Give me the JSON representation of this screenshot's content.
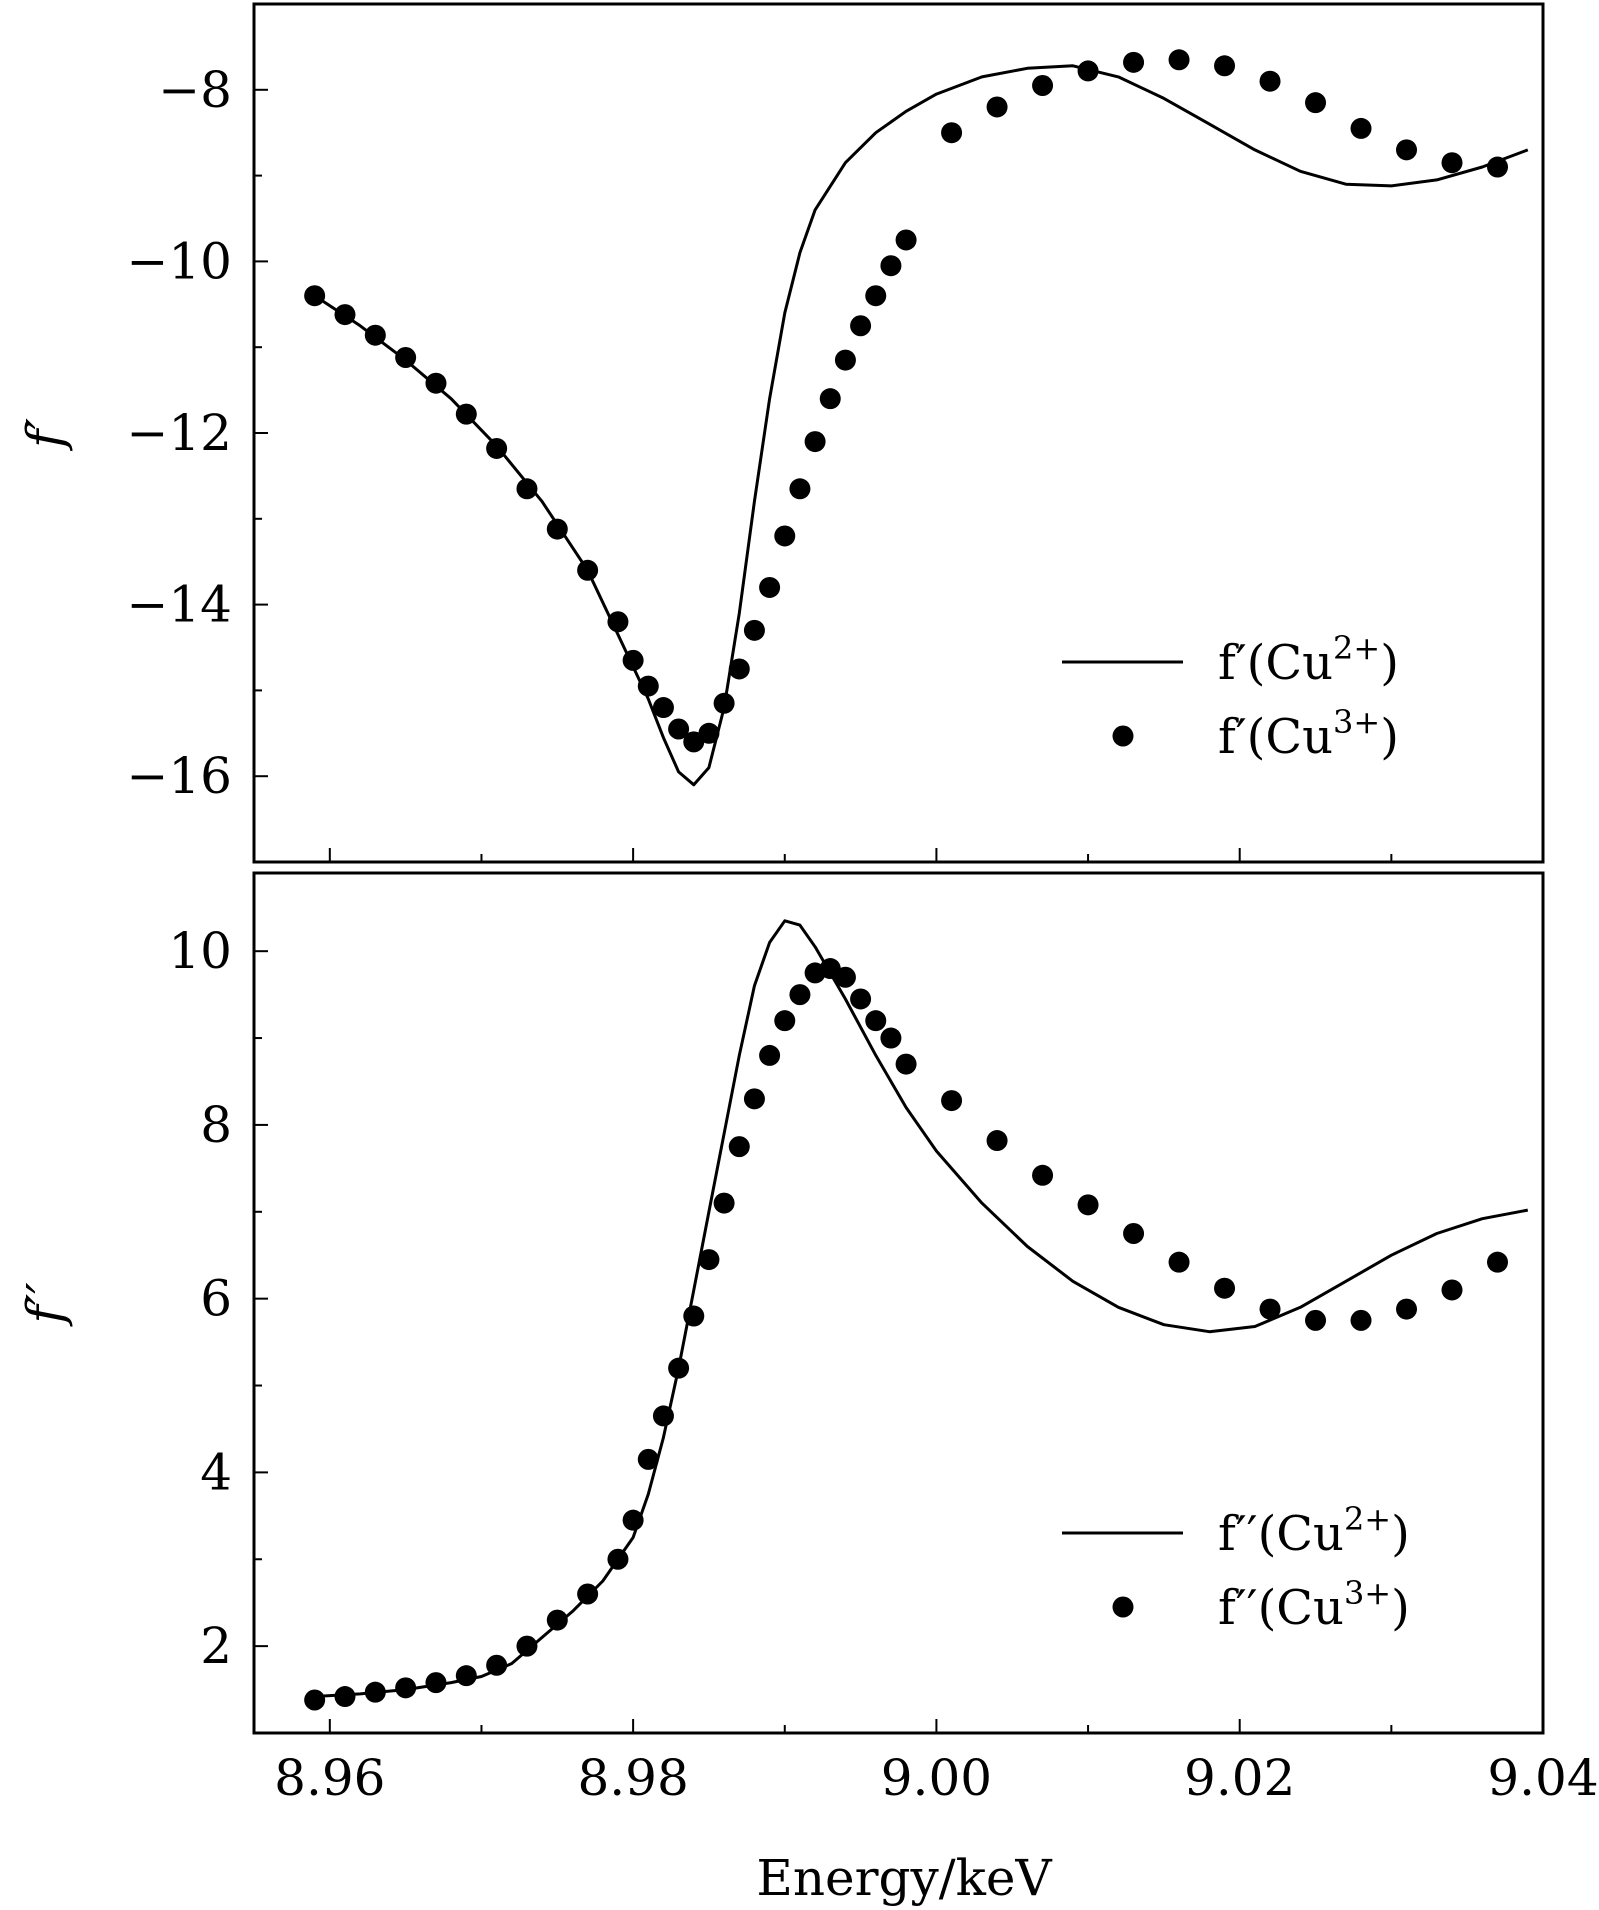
{
  "chart_data": [
    {
      "type": "line",
      "title": "",
      "xlabel": "",
      "ylabel": "f′",
      "xlim": [
        8.955,
        9.04
      ],
      "ylim": [
        -17.0,
        -7.0
      ],
      "yticks": [
        -16,
        -14,
        -12,
        -10,
        -8
      ],
      "ytick_labels": [
        "−16",
        "−14",
        "−12",
        "−10",
        "−8"
      ],
      "legend_position": "lower-right",
      "series": [
        {
          "name": "f′(Cu2+)",
          "label_main": "f′(Cu",
          "label_sup": "2+",
          "label_end": ")",
          "style": "line",
          "x": [
            8.959,
            8.962,
            8.965,
            8.968,
            8.971,
            8.974,
            8.977,
            8.979,
            8.981,
            8.982,
            8.983,
            8.984,
            8.985,
            8.986,
            8.987,
            8.988,
            8.989,
            8.99,
            8.991,
            8.992,
            8.994,
            8.996,
            8.998,
            9.0,
            9.003,
            9.006,
            9.009,
            9.012,
            9.015,
            9.018,
            9.021,
            9.024,
            9.027,
            9.03,
            9.033,
            9.036,
            9.039
          ],
          "y": [
            -10.4,
            -10.75,
            -11.15,
            -11.6,
            -12.15,
            -12.8,
            -13.6,
            -14.35,
            -15.1,
            -15.55,
            -15.95,
            -16.1,
            -15.9,
            -15.2,
            -14.1,
            -12.8,
            -11.6,
            -10.6,
            -9.9,
            -9.4,
            -8.85,
            -8.5,
            -8.25,
            -8.05,
            -7.85,
            -7.75,
            -7.72,
            -7.85,
            -8.1,
            -8.4,
            -8.7,
            -8.95,
            -9.1,
            -9.12,
            -9.05,
            -8.9,
            -8.7
          ]
        },
        {
          "name": "f′(Cu3+)",
          "label_main": "f′(Cu",
          "label_sup": "3+",
          "label_end": ")",
          "style": "markers",
          "x": [
            8.959,
            8.961,
            8.963,
            8.965,
            8.967,
            8.969,
            8.971,
            8.973,
            8.975,
            8.977,
            8.979,
            8.98,
            8.981,
            8.982,
            8.983,
            8.984,
            8.985,
            8.986,
            8.987,
            8.988,
            8.989,
            8.99,
            8.991,
            8.992,
            8.993,
            8.994,
            8.995,
            8.996,
            8.997,
            8.998,
            9.001,
            9.004,
            9.007,
            9.01,
            9.013,
            9.016,
            9.019,
            9.022,
            9.025,
            9.028,
            9.031,
            9.034,
            9.037
          ],
          "y": [
            -10.4,
            -10.62,
            -10.86,
            -11.12,
            -11.42,
            -11.78,
            -12.18,
            -12.65,
            -13.12,
            -13.6,
            -14.2,
            -14.65,
            -14.95,
            -15.2,
            -15.45,
            -15.6,
            -15.5,
            -15.15,
            -14.75,
            -14.3,
            -13.8,
            -13.2,
            -12.65,
            -12.1,
            -11.6,
            -11.15,
            -10.75,
            -10.4,
            -10.05,
            -9.75,
            -8.5,
            -8.2,
            -7.95,
            -7.78,
            -7.68,
            -7.65,
            -7.72,
            -7.9,
            -8.15,
            -8.45,
            -8.7,
            -8.85,
            -8.9
          ]
        }
      ]
    },
    {
      "type": "line",
      "title": "",
      "xlabel": "Energy/keV",
      "ylabel": "f′′",
      "xlim": [
        8.955,
        9.04
      ],
      "ylim": [
        1.0,
        10.9
      ],
      "xticks": [
        8.96,
        8.98,
        9.0,
        9.02,
        9.04
      ],
      "xtick_labels": [
        "8.96",
        "8.98",
        "9.00",
        "9.02",
        "9.04"
      ],
      "yticks": [
        2,
        4,
        6,
        8,
        10
      ],
      "ytick_labels": [
        "2",
        "4",
        "6",
        "8",
        "10"
      ],
      "legend_position": "lower-right",
      "series": [
        {
          "name": "f′′(Cu2+)",
          "label_main": "f′′(Cu",
          "label_sup": "2+",
          "label_end": ")",
          "style": "line",
          "x": [
            8.959,
            8.962,
            8.965,
            8.968,
            8.97,
            8.972,
            8.974,
            8.976,
            8.978,
            8.98,
            8.981,
            8.982,
            8.983,
            8.984,
            8.985,
            8.986,
            8.987,
            8.988,
            8.989,
            8.99,
            8.991,
            8.992,
            8.994,
            8.996,
            8.998,
            9.0,
            9.003,
            9.006,
            9.009,
            9.012,
            9.015,
            9.018,
            9.021,
            9.024,
            9.027,
            9.03,
            9.033,
            9.036,
            9.039
          ],
          "y": [
            1.42,
            1.45,
            1.5,
            1.58,
            1.65,
            1.8,
            2.1,
            2.4,
            2.75,
            3.25,
            3.75,
            4.4,
            5.2,
            6.1,
            7.0,
            7.9,
            8.8,
            9.6,
            10.1,
            10.35,
            10.3,
            10.05,
            9.45,
            8.8,
            8.2,
            7.7,
            7.1,
            6.6,
            6.2,
            5.9,
            5.7,
            5.62,
            5.68,
            5.9,
            6.2,
            6.5,
            6.75,
            6.92,
            7.02
          ]
        },
        {
          "name": "f′′(Cu3+)",
          "label_main": "f′′(Cu",
          "label_sup": "3+",
          "label_end": ")",
          "style": "markers",
          "x": [
            8.959,
            8.961,
            8.963,
            8.965,
            8.967,
            8.969,
            8.971,
            8.973,
            8.975,
            8.977,
            8.979,
            8.98,
            8.981,
            8.982,
            8.983,
            8.984,
            8.985,
            8.986,
            8.987,
            8.988,
            8.989,
            8.99,
            8.991,
            8.992,
            8.993,
            8.994,
            8.995,
            8.996,
            8.997,
            8.998,
            9.001,
            9.004,
            9.007,
            9.01,
            9.013,
            9.016,
            9.019,
            9.022,
            9.025,
            9.028,
            9.031,
            9.034,
            9.037
          ],
          "y": [
            1.38,
            1.42,
            1.47,
            1.52,
            1.58,
            1.66,
            1.78,
            2.0,
            2.3,
            2.6,
            3.0,
            3.45,
            4.15,
            4.65,
            5.2,
            5.8,
            6.45,
            7.1,
            7.75,
            8.3,
            8.8,
            9.2,
            9.5,
            9.75,
            9.8,
            9.7,
            9.45,
            9.2,
            9.0,
            8.7,
            8.28,
            7.82,
            7.42,
            7.08,
            6.75,
            6.42,
            6.12,
            5.88,
            5.75,
            5.75,
            5.88,
            6.1,
            6.42
          ]
        }
      ]
    }
  ]
}
